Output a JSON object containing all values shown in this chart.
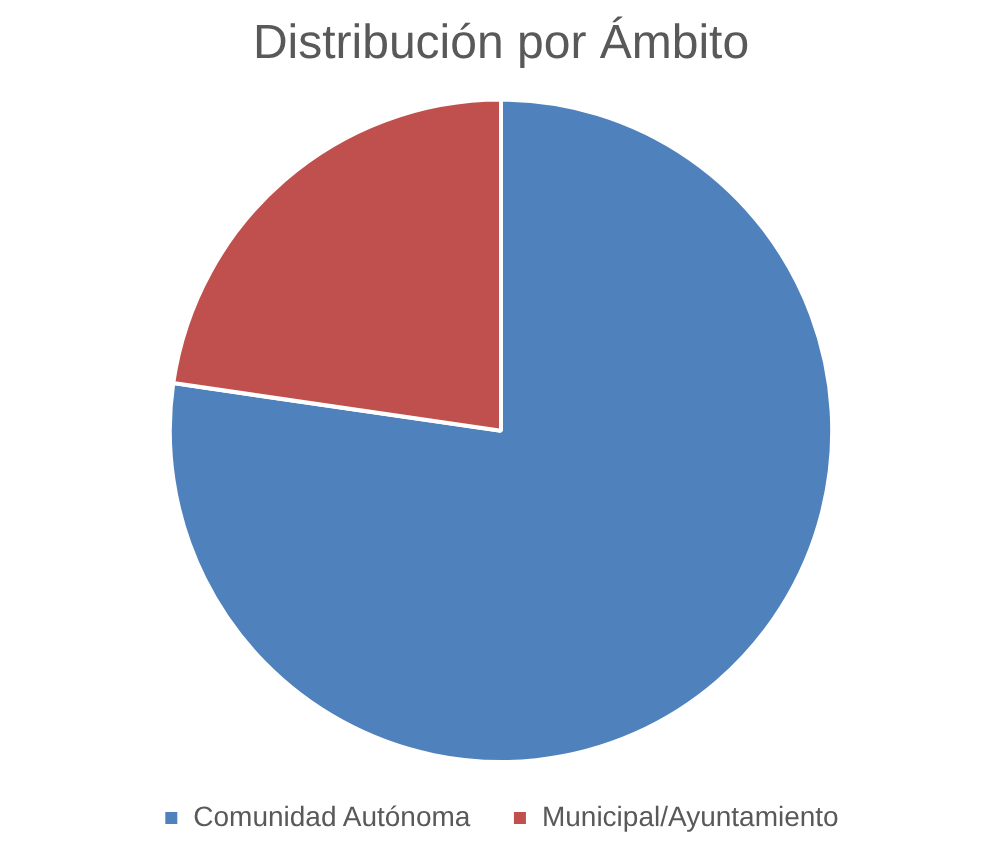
{
  "chart_data": {
    "type": "pie",
    "title": "Distribución por Ámbito",
    "categories": [
      "Comunidad Autónoma",
      "Municipal/Ayuntamiento"
    ],
    "values": [
      77.3,
      22.7
    ],
    "colors": [
      "#4f81bd",
      "#c0504d"
    ],
    "legend": "bottom"
  }
}
